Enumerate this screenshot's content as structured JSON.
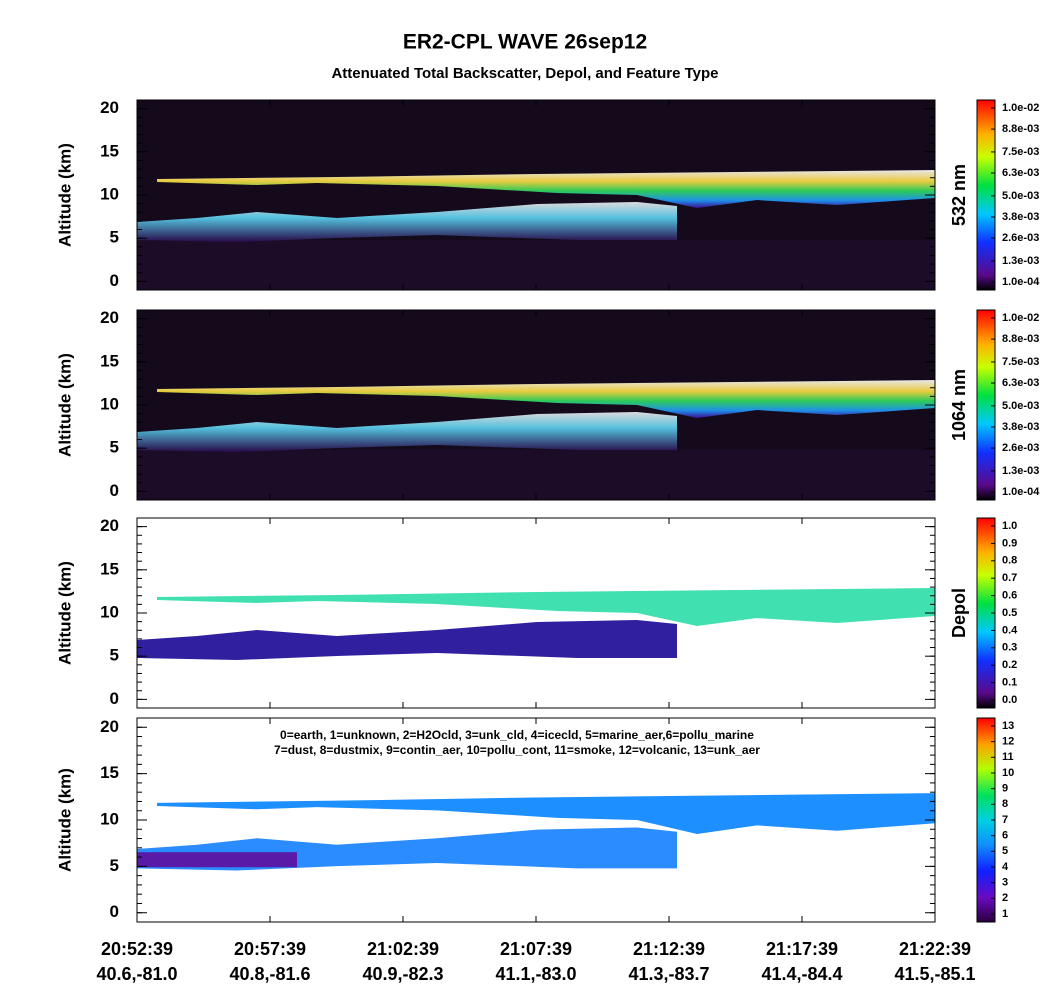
{
  "title": "ER2-CPL WAVE 26sep12",
  "subtitle": "Attenuated Total Backscatter, Depol, and Feature Type",
  "x_axis": {
    "times": [
      "20:52:39",
      "20:57:39",
      "21:02:39",
      "21:07:39",
      "21:12:39",
      "21:17:39",
      "21:22:39"
    ],
    "coords": [
      "40.6,-81.0",
      "40.8,-81.6",
      "40.9,-82.3",
      "41.1,-83.0",
      "41.3,-83.7",
      "41.4,-84.4",
      "41.5,-85.1"
    ]
  },
  "chart_data": [
    {
      "type": "heatmap",
      "ylabel": "Altitude (km)",
      "colorbar_label": "532 nm",
      "ylim": [
        -1,
        21
      ],
      "yticks": [
        0,
        5,
        10,
        15,
        20
      ],
      "clim": [
        0.0001,
        0.01
      ],
      "style": "dark",
      "colorbar_ticks": [
        {
          "value": 0.01,
          "label": "1.0e-02"
        },
        {
          "value": 0.0088,
          "label": "8.8e-03"
        },
        {
          "value": 0.0075,
          "label": "7.5e-03"
        },
        {
          "value": 0.0063,
          "label": "6.3e-03"
        },
        {
          "value": 0.005,
          "label": "5.0e-03"
        },
        {
          "value": 0.0038,
          "label": "3.8e-03"
        },
        {
          "value": 0.0026,
          "label": "2.6e-03"
        },
        {
          "value": 0.0013,
          "label": "1.3e-03"
        },
        {
          "value": 0.0001,
          "label": "1.0e-04"
        }
      ]
    },
    {
      "type": "heatmap",
      "ylabel": "Altitude (km)",
      "colorbar_label": "1064 nm",
      "ylim": [
        -1,
        21
      ],
      "yticks": [
        0,
        5,
        10,
        15,
        20
      ],
      "clim": [
        0.0001,
        0.01
      ],
      "style": "dark",
      "colorbar_ticks": [
        {
          "value": 0.01,
          "label": "1.0e-02"
        },
        {
          "value": 0.0088,
          "label": "8.8e-03"
        },
        {
          "value": 0.0075,
          "label": "7.5e-03"
        },
        {
          "value": 0.0063,
          "label": "6.3e-03"
        },
        {
          "value": 0.005,
          "label": "5.0e-03"
        },
        {
          "value": 0.0038,
          "label": "3.8e-03"
        },
        {
          "value": 0.0026,
          "label": "2.6e-03"
        },
        {
          "value": 0.0013,
          "label": "1.3e-03"
        },
        {
          "value": 0.0001,
          "label": "1.0e-04"
        }
      ]
    },
    {
      "type": "heatmap",
      "ylabel": "Altitude (km)",
      "colorbar_label": "Depol",
      "ylim": [
        -1,
        21
      ],
      "yticks": [
        0,
        5,
        10,
        15,
        20
      ],
      "clim": [
        0,
        1
      ],
      "style": "depol",
      "colorbar_ticks": [
        {
          "value": 1,
          "label": "1.0"
        },
        0.9,
        0.8,
        0.7,
        0.6,
        0.5,
        0.4,
        0.3,
        0.2,
        0.1,
        {
          "value": 0,
          "label": "0.0"
        }
      ]
    },
    {
      "type": "heatmap",
      "ylabel": "Altitude (km)",
      "ylim": [
        -1,
        21
      ],
      "yticks": [
        0,
        5,
        10,
        15,
        20
      ],
      "clim": [
        1,
        13
      ],
      "style": "feature",
      "legend_lines": [
        "0=earth, 1=unknown, 2=H2Ocld, 3=unk_cld, 4=icecld, 5=marine_aer,6=pollu_marine",
        "7=dust, 8=dustmix, 9=contin_aer, 10=pollu_cont, 11=smoke, 12=volcanic, 13=unk_aer"
      ],
      "colorbar_ticks": [
        13,
        12,
        11,
        10,
        9,
        8,
        7,
        6,
        5,
        4,
        3,
        2,
        1
      ]
    }
  ]
}
